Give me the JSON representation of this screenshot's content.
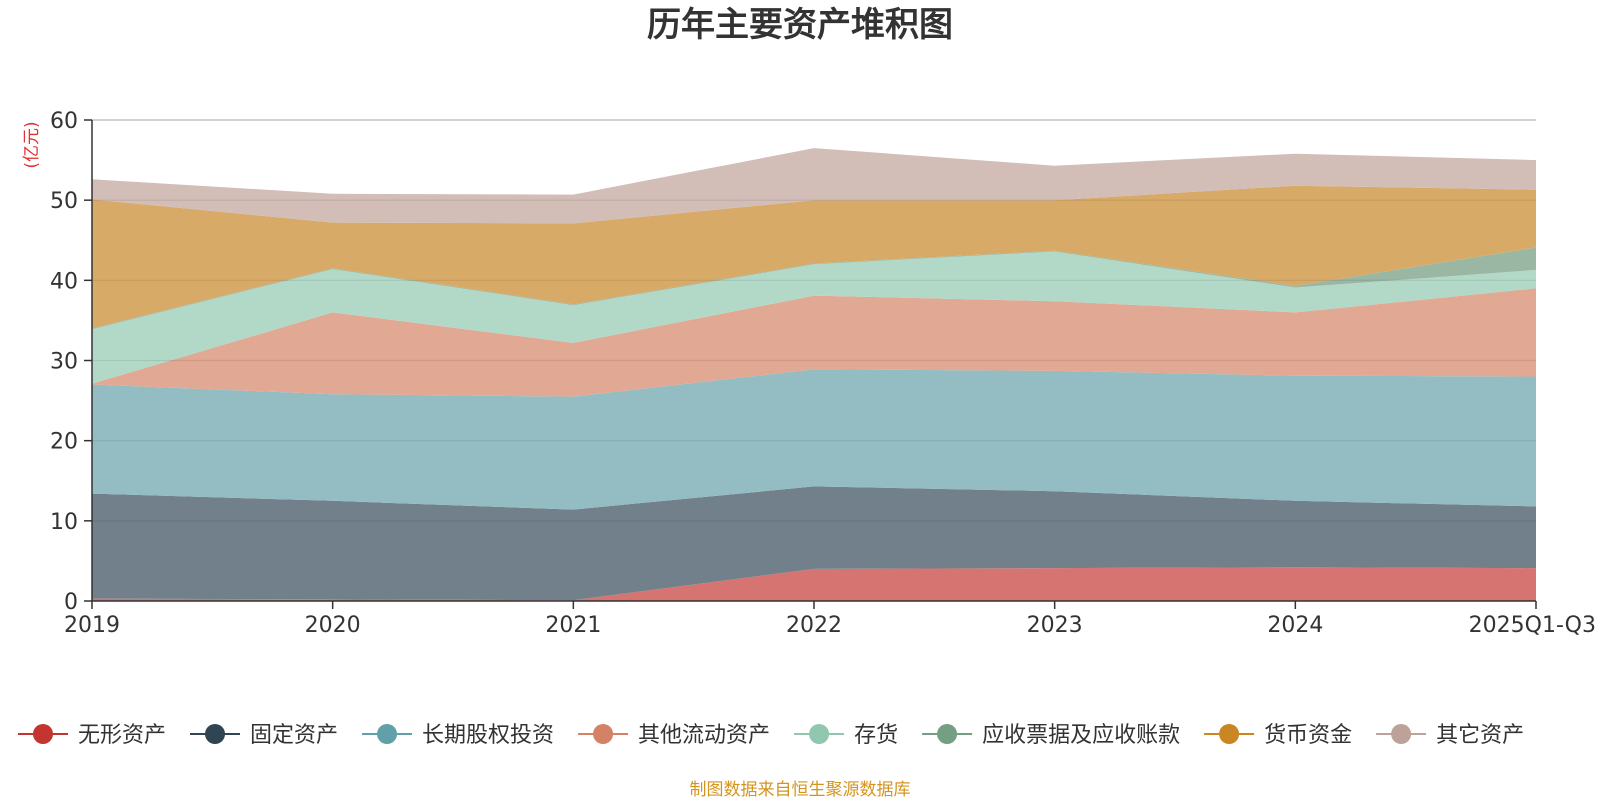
{
  "chart_data": {
    "type": "area",
    "stacked": true,
    "title": "历年主要资产堆积图",
    "ylabel": "(亿元)",
    "xlabel": "",
    "categories": [
      "2019",
      "2020",
      "2021",
      "2022",
      "2023",
      "2024",
      "2025Q1-Q3"
    ],
    "ylim": [
      0,
      60
    ],
    "yticks": [
      0,
      10,
      20,
      30,
      40,
      50,
      60
    ],
    "grid": true,
    "legend_position": "bottom",
    "series": [
      {
        "name": "无形资产",
        "color": "#c23531",
        "fill": "#d4706b",
        "values": [
          0.3,
          0.2,
          0.1,
          4.0,
          4.1,
          4.2,
          4.1
        ]
      },
      {
        "name": "固定资产",
        "color": "#2f4554",
        "fill": "#6d7c87",
        "values": [
          13.1,
          12.3,
          11.3,
          10.3,
          9.6,
          8.3,
          7.7
        ]
      },
      {
        "name": "长期股权投资",
        "color": "#61a0a8",
        "fill": "#90bac1",
        "values": [
          13.6,
          13.3,
          14.1,
          14.6,
          15.0,
          15.6,
          16.2
        ]
      },
      {
        "name": "其他流动资产",
        "color": "#d48265",
        "fill": "#e0a590",
        "values": [
          0.1,
          10.2,
          6.7,
          9.2,
          8.7,
          7.9,
          11.0
        ]
      },
      {
        "name": "存货",
        "color": "#91c7ae",
        "fill": "#b0d8c5",
        "values": [
          6.8,
          5.4,
          4.7,
          3.9,
          6.2,
          3.1,
          2.3
        ]
      },
      {
        "name": "应收票据及应收账款",
        "color": "#749f83",
        "fill": "#96b5a0",
        "values": [
          0.1,
          0.1,
          0.1,
          0.1,
          0.1,
          0.2,
          2.8
        ]
      },
      {
        "name": "货币资金",
        "color": "#ca8622",
        "fill": "#d7a762",
        "values": [
          16.1,
          5.7,
          10.1,
          7.9,
          6.3,
          12.5,
          7.2
        ]
      },
      {
        "name": "其它资产",
        "color": "#bda29a",
        "fill": "#d1bbb5",
        "values": [
          2.5,
          3.6,
          3.6,
          6.5,
          4.3,
          4.0,
          3.7
        ]
      }
    ]
  },
  "footer": {
    "source": "制图数据来自恒生聚源数据库"
  }
}
